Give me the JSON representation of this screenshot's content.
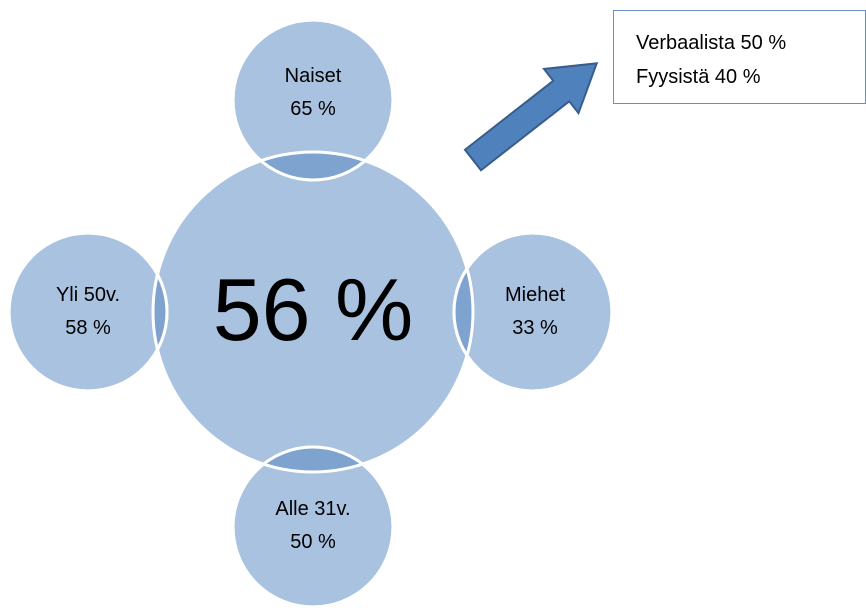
{
  "center": {
    "value": "56 %"
  },
  "segments": [
    {
      "label": "Naiset",
      "value": "65 %"
    },
    {
      "label": "Miehet",
      "value": "33 %"
    },
    {
      "label": "Alle 31v.",
      "value": "50 %"
    },
    {
      "label": "Yli 50v.",
      "value": "58 %"
    }
  ],
  "note": {
    "lines": [
      "Verbaalista 50 %",
      "Fyysistä 40 %"
    ]
  }
}
